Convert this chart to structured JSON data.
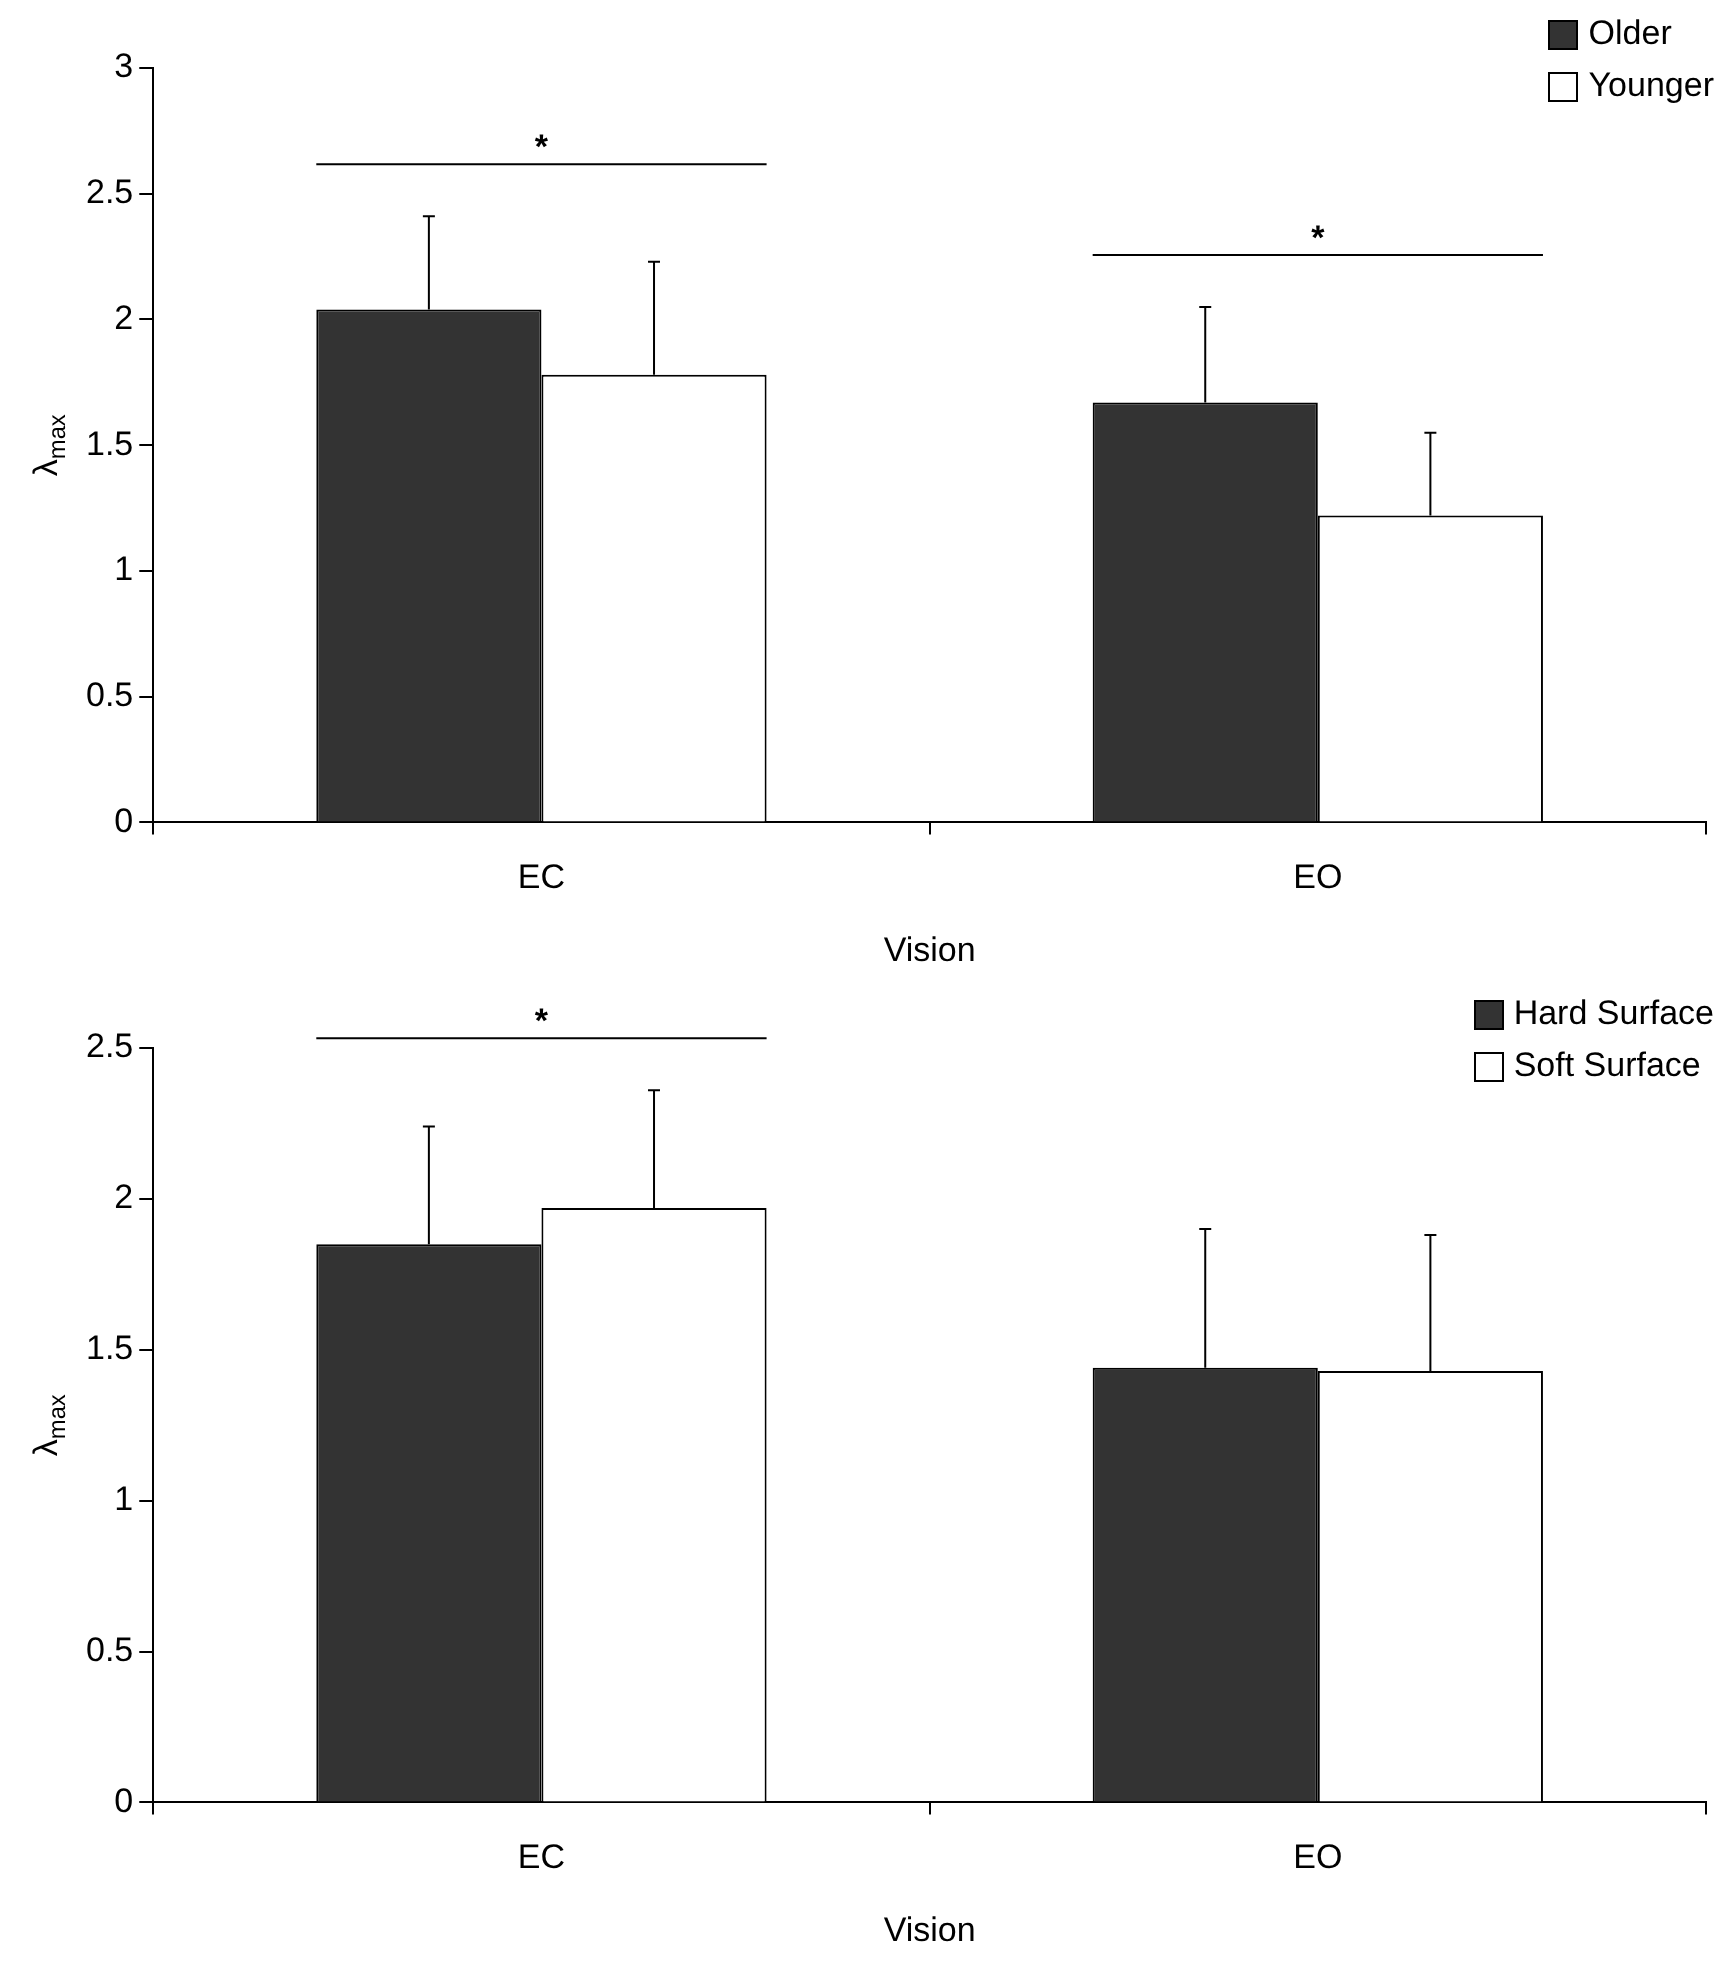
{
  "chart_data": [
    {
      "type": "bar",
      "xlabel": "Vision",
      "ylabel": "λ$_{max}$",
      "categories": [
        "EC",
        "EO"
      ],
      "ylim": [
        0,
        3
      ],
      "yticks": [
        0,
        0.5,
        1,
        1.5,
        2,
        2.5,
        3
      ],
      "grid": false,
      "legend": "top right",
      "series": [
        {
          "name": "Older",
          "color": "#333333",
          "values": [
            2.04,
            1.67
          ],
          "errors": [
            [
              2.04,
              2.41
            ],
            [
              1.67,
              2.05
            ]
          ]
        },
        {
          "name": "Younger",
          "color": "#ffffff",
          "values": [
            1.78,
            1.22
          ],
          "errors": [
            [
              1.78,
              2.23
            ],
            [
              1.22,
              1.55
            ]
          ]
        }
      ],
      "annotations": [
        "*",
        "*"
      ]
    },
    {
      "type": "bar",
      "xlabel": "Vision",
      "ylabel": "λ$_{max}$",
      "categories": [
        "EC",
        "EO"
      ],
      "ylim": [
        0,
        2.5
      ],
      "yticks": [
        0,
        0.5,
        1,
        1.5,
        2,
        2.5
      ],
      "grid": false,
      "legend": "top right",
      "series": [
        {
          "name": "Hard Surface",
          "color": "#333333",
          "values": [
            1.85,
            1.44
          ],
          "errors": [
            [
              1.85,
              2.24
            ],
            [
              1.44,
              1.9
            ]
          ]
        },
        {
          "name": "Soft Surface",
          "color": "#ffffff",
          "values": [
            1.97,
            1.43
          ],
          "errors": [
            [
              1.97,
              2.36
            ],
            [
              1.43,
              1.88
            ]
          ]
        }
      ],
      "annotations": [
        "*"
      ]
    }
  ]
}
